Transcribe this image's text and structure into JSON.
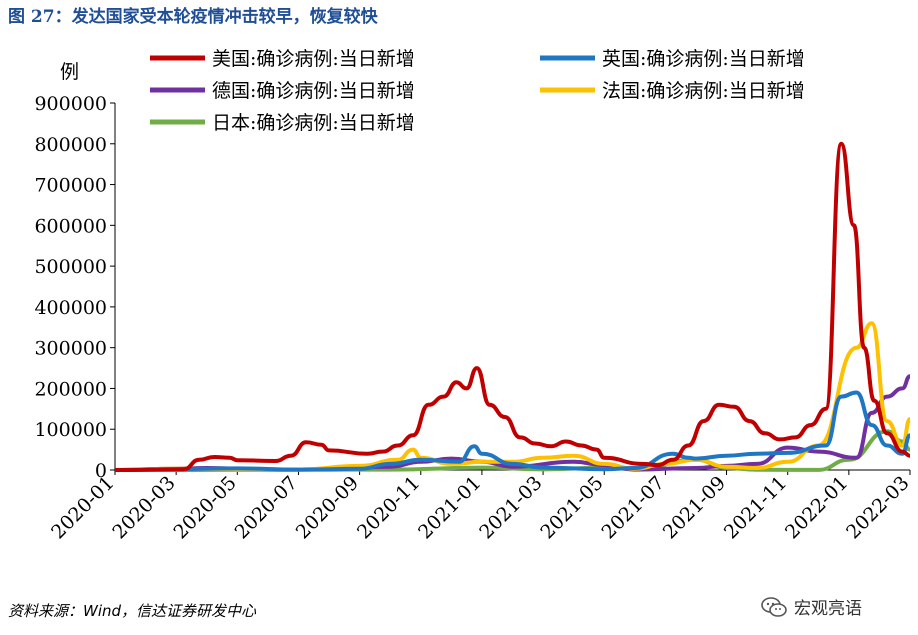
{
  "figure": {
    "title": "图 27：发达国家受本轮疫情冲击较早，恢复较快",
    "source": "资料来源：Wind，信达证券研发中心",
    "watermark": "宏观亮语",
    "watermark_icon": "wechat-icon"
  },
  "chart_data": {
    "type": "line",
    "ylabel": "例",
    "ylim": [
      0,
      900000
    ],
    "yticks": [
      "0",
      "100000",
      "200000",
      "300000",
      "400000",
      "500000",
      "600000",
      "700000",
      "800000",
      "900000"
    ],
    "xticks": [
      "2020-01",
      "2020-03",
      "2020-05",
      "2020-07",
      "2020-09",
      "2020-11",
      "2021-01",
      "2021-03",
      "2021-05",
      "2021-07",
      "2021-09",
      "2021-11",
      "2022-01",
      "2022-03"
    ],
    "x_month_index_note_hidden": false,
    "legend_position": "top",
    "grid": false,
    "series": [
      {
        "name": "美国:确诊病例:当日新增",
        "color": "#c00000",
        "x": [
          "2020-01",
          "2020-03",
          "2020-03",
          "2020-04",
          "2020-04",
          "2020-05",
          "2020-06",
          "2020-06",
          "2020-07",
          "2020-07",
          "2020-08",
          "2020-09",
          "2020-09",
          "2020-10",
          "2020-10",
          "2020-11",
          "2020-11",
          "2020-12",
          "2020-12",
          "2020-12",
          "2021-01",
          "2021-01",
          "2021-02",
          "2021-02",
          "2021-03",
          "2021-03",
          "2021-04",
          "2021-04",
          "2021-05",
          "2021-06",
          "2021-06",
          "2021-07",
          "2021-07",
          "2021-08",
          "2021-08",
          "2021-09",
          "2021-09",
          "2021-10",
          "2021-10",
          "2021-11",
          "2021-11",
          "2021-12",
          "2021-12",
          "2022-01",
          "2022-01",
          "2022-01",
          "2022-02",
          "2022-02",
          "2022-03"
        ],
        "y": [
          0,
          2000,
          25000,
          32000,
          30000,
          24000,
          22000,
          35000,
          68000,
          62000,
          48000,
          40000,
          45000,
          60000,
          85000,
          160000,
          180000,
          215000,
          200000,
          250000,
          160000,
          130000,
          80000,
          65000,
          58000,
          70000,
          60000,
          50000,
          30000,
          15000,
          12000,
          25000,
          60000,
          120000,
          160000,
          155000,
          120000,
          90000,
          75000,
          80000,
          110000,
          150000,
          800000,
          600000,
          300000,
          170000,
          90000,
          45000,
          35000
        ]
      },
      {
        "name": "英国:确诊病例:当日新增",
        "color": "#1f77c4",
        "x": [
          "2020-01",
          "2020-03",
          "2020-05",
          "2020-07",
          "2020-09",
          "2020-10",
          "2020-11",
          "2020-12",
          "2020-12",
          "2021-01",
          "2021-02",
          "2021-03",
          "2021-05",
          "2021-06",
          "2021-07",
          "2021-07",
          "2021-08",
          "2021-09",
          "2021-10",
          "2021-11",
          "2021-12",
          "2021-12",
          "2022-01",
          "2022-01",
          "2022-02",
          "2022-02",
          "2022-03"
        ],
        "y": [
          0,
          2000,
          4000,
          1000,
          3000,
          15000,
          25000,
          20000,
          58000,
          40000,
          15000,
          6000,
          2000,
          5000,
          40000,
          30000,
          28000,
          35000,
          40000,
          42000,
          60000,
          180000,
          190000,
          110000,
          60000,
          40000,
          85000
        ]
      },
      {
        "name": "德国:确诊病例:当日新增",
        "color": "#7030a0",
        "x": [
          "2020-01",
          "2020-03",
          "2020-04",
          "2020-06",
          "2020-08",
          "2020-10",
          "2020-11",
          "2020-12",
          "2021-01",
          "2021-02",
          "2021-04",
          "2021-05",
          "2021-06",
          "2021-08",
          "2021-09",
          "2021-10",
          "2021-11",
          "2021-12",
          "2022-01",
          "2022-01",
          "2022-02",
          "2022-02",
          "2022-03"
        ],
        "y": [
          0,
          3000,
          5000,
          1000,
          1500,
          8000,
          20000,
          28000,
          20000,
          8000,
          20000,
          12000,
          1000,
          5000,
          10000,
          15000,
          55000,
          45000,
          30000,
          140000,
          180000,
          200000,
          230000
        ]
      },
      {
        "name": "法国:确诊病例:当日新增",
        "color": "#ffc000",
        "x": [
          "2020-01",
          "2020-03",
          "2020-05",
          "2020-07",
          "2020-09",
          "2020-10",
          "2020-10",
          "2020-11",
          "2020-12",
          "2021-01",
          "2021-02",
          "2021-03",
          "2021-04",
          "2021-05",
          "2021-06",
          "2021-07",
          "2021-08",
          "2021-09",
          "2021-10",
          "2021-11",
          "2021-12",
          "2022-01",
          "2022-01",
          "2022-02",
          "2022-02",
          "2022-03"
        ],
        "y": [
          0,
          3000,
          1000,
          1000,
          10000,
          25000,
          50000,
          30000,
          15000,
          20000,
          20000,
          30000,
          35000,
          15000,
          3000,
          15000,
          25000,
          8000,
          5000,
          20000,
          60000,
          300000,
          360000,
          120000,
          60000,
          125000
        ]
      },
      {
        "name": "日本:确诊病例:当日新增",
        "color": "#70ad47",
        "x": [
          "2020-01",
          "2020-06",
          "2020-08",
          "2020-10",
          "2021-01",
          "2021-03",
          "2021-05",
          "2021-06",
          "2021-08",
          "2021-09",
          "2021-10",
          "2021-12",
          "2022-01",
          "2022-02",
          "2022-02",
          "2022-03"
        ],
        "y": [
          0,
          0,
          1000,
          1000,
          6000,
          1500,
          6000,
          2000,
          25000,
          5000,
          500,
          300,
          25000,
          95000,
          70000,
          50000
        ]
      }
    ]
  }
}
